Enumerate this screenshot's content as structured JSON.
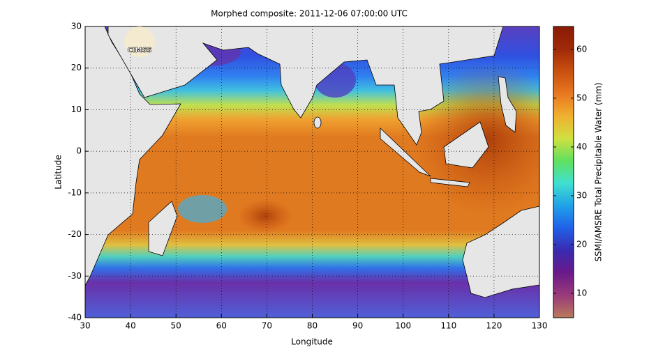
{
  "title": "Morphed composite: 2011-12-06 07:00:00 UTC",
  "xlabel": "Longitude",
  "ylabel": "Latitude",
  "xlim": [
    30,
    130
  ],
  "ylim": [
    -40,
    30
  ],
  "xticks": [
    30,
    40,
    50,
    60,
    70,
    80,
    90,
    100,
    110,
    120,
    130
  ],
  "yticks": [
    -40,
    -30,
    -20,
    -10,
    0,
    10,
    20,
    30
  ],
  "grid": true,
  "logo": "CIMSS",
  "colorbar": {
    "label": "SSMI/AMSRE Total Precipitable Water (mm)",
    "lim": [
      5,
      64.7
    ],
    "ticks": [
      10,
      20,
      30,
      40,
      50,
      60
    ],
    "colors": [
      "#b87a5a",
      "#9a3a7a",
      "#6a1a8a",
      "#3a2ab0",
      "#2060e8",
      "#20a0e8",
      "#40e0d0",
      "#60e060",
      "#d0e040",
      "#f0b030",
      "#e87820",
      "#c85010",
      "#a02a08",
      "#8a1a05"
    ]
  }
}
